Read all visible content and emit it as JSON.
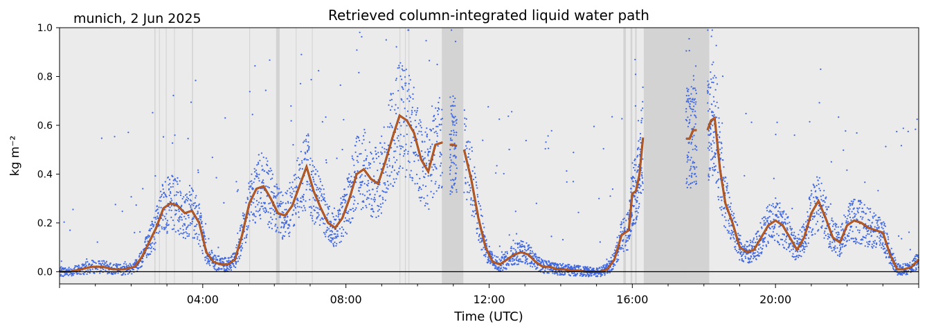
{
  "title": "Retrieved column-integrated liquid water path",
  "subtitle": "munich, 2 Jun 2025",
  "colors": {
    "background": "#ebebeb",
    "flag_shading": "#d3d3d3",
    "raw_points": "#4169e1",
    "smoothed_line": "#c8642a",
    "zero_line": "#000000"
  },
  "chart_data": {
    "type": "scatter",
    "title": "Retrieved column-integrated liquid water path",
    "xlabel": "Time (UTC)",
    "ylabel": "kg m⁻²",
    "xlim": [
      0,
      24
    ],
    "ylim": [
      -0.05,
      1.0
    ],
    "x_unit": "hours UTC",
    "xticks": [
      0,
      4,
      8,
      12,
      16,
      20,
      24
    ],
    "xtick_labels": [
      "",
      "04:00",
      "08:00",
      "12:00",
      "16:00",
      "20:00",
      ""
    ],
    "yticks": [
      0,
      0.2,
      0.4,
      0.6,
      0.8,
      1.0
    ],
    "ytick_labels": [
      "0.0",
      "0.2",
      "0.4",
      "0.6",
      "0.8",
      "1.0"
    ],
    "grid": false,
    "zero_line": true,
    "flagged_intervals": [
      [
        2.65,
        2.68
      ],
      [
        2.78,
        2.8
      ],
      [
        2.97,
        2.99
      ],
      [
        3.2,
        3.22
      ],
      [
        3.7,
        3.73
      ],
      [
        5.3,
        5.32
      ],
      [
        6.05,
        6.15
      ],
      [
        6.6,
        6.62
      ],
      [
        7.05,
        7.07
      ],
      [
        9.5,
        9.52
      ],
      [
        9.65,
        9.67
      ],
      [
        9.75,
        9.77
      ],
      [
        10.68,
        11.28
      ],
      [
        15.75,
        15.82
      ],
      [
        15.95,
        16.0
      ],
      [
        16.08,
        16.12
      ],
      [
        16.32,
        18.15
      ],
      [
        17.45,
        17.47
      ],
      [
        17.6,
        17.62
      ]
    ],
    "series": [
      {
        "style": "line",
        "x": [
          0.0,
          0.3,
          0.6,
          0.9,
          1.2,
          1.5,
          1.8,
          2.1,
          2.3,
          2.5,
          2.7,
          2.9,
          3.1,
          3.3,
          3.5,
          3.7,
          3.9,
          4.1,
          4.3,
          4.5,
          4.7,
          4.9,
          5.1,
          5.3,
          5.5,
          5.7,
          5.9,
          6.1,
          6.3,
          6.5,
          6.7,
          6.9,
          7.1,
          7.3,
          7.5,
          7.7,
          7.9,
          8.1,
          8.3,
          8.5,
          8.7,
          8.9,
          9.1,
          9.3,
          9.5,
          9.7,
          9.9,
          10.1,
          10.3,
          10.5,
          10.7
        ],
        "y": [
          0.0,
          0.0,
          0.01,
          0.02,
          0.02,
          0.01,
          0.01,
          0.02,
          0.06,
          0.12,
          0.18,
          0.26,
          0.28,
          0.27,
          0.24,
          0.25,
          0.2,
          0.08,
          0.04,
          0.03,
          0.03,
          0.05,
          0.15,
          0.28,
          0.34,
          0.35,
          0.3,
          0.24,
          0.23,
          0.27,
          0.35,
          0.43,
          0.33,
          0.26,
          0.2,
          0.18,
          0.22,
          0.3,
          0.4,
          0.42,
          0.38,
          0.36,
          0.45,
          0.55,
          0.64,
          0.62,
          0.57,
          0.46,
          0.41,
          0.52,
          0.53
        ]
      },
      {
        "style": "line",
        "x": [
          10.9,
          11.0,
          11.1
        ],
        "y": [
          0.52,
          0.52,
          0.515
        ]
      },
      {
        "style": "line",
        "x": [
          11.3,
          11.5,
          11.7,
          11.9,
          12.1,
          12.3,
          12.5,
          12.7,
          12.9,
          13.1,
          13.3,
          13.5,
          13.7,
          13.9,
          14.1,
          14.3,
          14.5,
          14.7,
          14.9,
          15.1,
          15.3,
          15.5,
          15.7,
          15.9,
          16.0,
          16.1,
          16.2,
          16.3
        ],
        "y": [
          0.5,
          0.38,
          0.22,
          0.1,
          0.04,
          0.03,
          0.05,
          0.07,
          0.08,
          0.07,
          0.04,
          0.02,
          0.02,
          0.01,
          0.01,
          0.005,
          0.005,
          0.0,
          0.0,
          0.0,
          0.01,
          0.05,
          0.15,
          0.17,
          0.32,
          0.33,
          0.4,
          0.55
        ]
      },
      {
        "style": "line",
        "x": [
          17.5,
          17.6,
          17.7,
          17.8
        ],
        "y": [
          0.545,
          0.545,
          0.58,
          0.58
        ]
      },
      {
        "style": "line",
        "x": [
          18.1,
          18.2,
          18.3,
          18.45,
          18.6,
          18.8,
          19.0,
          19.2,
          19.4,
          19.6,
          19.8,
          20.0,
          20.2,
          20.4,
          20.6,
          20.8,
          21.0,
          21.2,
          21.4,
          21.6,
          21.8,
          22.0,
          22.2,
          22.4,
          22.6,
          22.8,
          23.0,
          23.2,
          23.4,
          23.6,
          23.8,
          24.0
        ],
        "y": [
          0.58,
          0.62,
          0.63,
          0.42,
          0.28,
          0.2,
          0.1,
          0.08,
          0.09,
          0.14,
          0.19,
          0.21,
          0.19,
          0.14,
          0.09,
          0.14,
          0.24,
          0.29,
          0.22,
          0.14,
          0.12,
          0.19,
          0.21,
          0.2,
          0.18,
          0.17,
          0.16,
          0.07,
          0.01,
          0.01,
          0.02,
          0.05
        ]
      }
    ]
  }
}
